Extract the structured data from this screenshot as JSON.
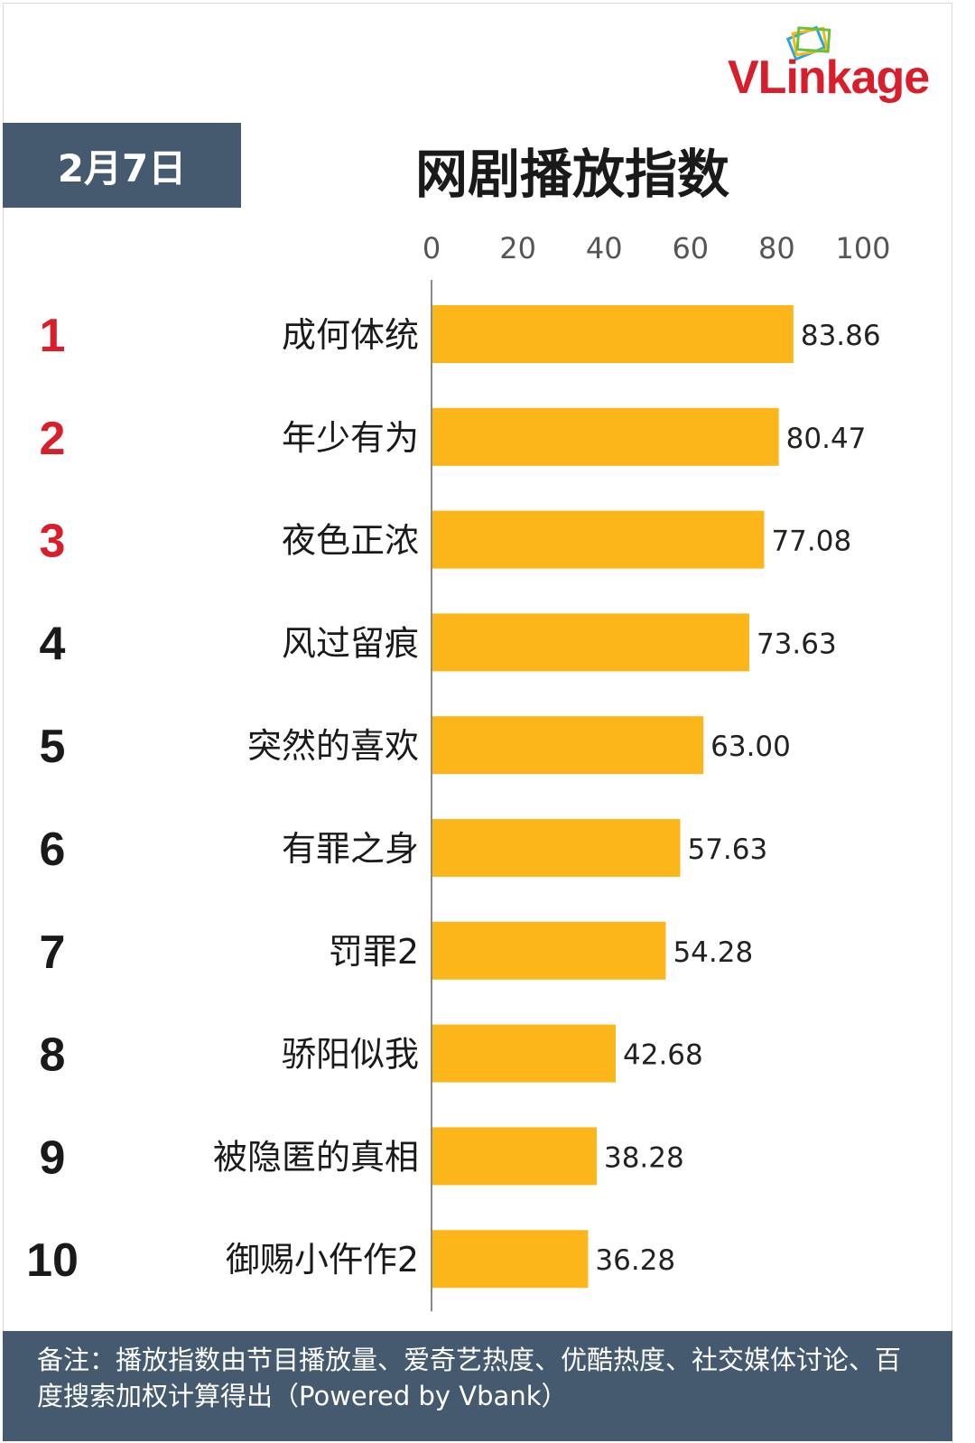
{
  "brand": {
    "logo_text": "VLinkage",
    "logo_icon": "stacked-cards-icon"
  },
  "header": {
    "date_label": "2月7日",
    "title": "网剧播放指数"
  },
  "footer": {
    "note": "备注：播放指数由节目播放量、爱奇艺热度、优酷热度、社交媒体讨论、百度搜索加权计算得出（Powered by Vbank）"
  },
  "colors": {
    "bar": "#fdb61a",
    "header_bg": "#455a6e",
    "top_rank": "#d81e2b",
    "rank": "#1a1a1a",
    "logo": "#d81e2b"
  },
  "chart_data": {
    "type": "bar",
    "orientation": "horizontal",
    "title": "网剧播放指数",
    "xlim": [
      0,
      100
    ],
    "x_ticks": [
      0,
      20,
      40,
      60,
      80,
      100
    ],
    "grid": false,
    "ranks": [
      "1",
      "2",
      "3",
      "4",
      "5",
      "6",
      "7",
      "8",
      "9",
      "10"
    ],
    "categories": [
      "成何体统",
      "年少有为",
      "夜色正浓",
      "风过留痕",
      "突然的喜欢",
      "有罪之身",
      "罚罪2",
      "骄阳似我",
      "被隐匿的真相",
      "御赐小仵作2"
    ],
    "values": [
      83.86,
      80.47,
      77.08,
      73.63,
      63.0,
      57.63,
      54.28,
      42.68,
      38.28,
      36.28
    ],
    "value_labels": [
      "83.86",
      "80.47",
      "77.08",
      "73.63",
      "63.00",
      "57.63",
      "54.28",
      "42.68",
      "38.28",
      "36.28"
    ]
  }
}
